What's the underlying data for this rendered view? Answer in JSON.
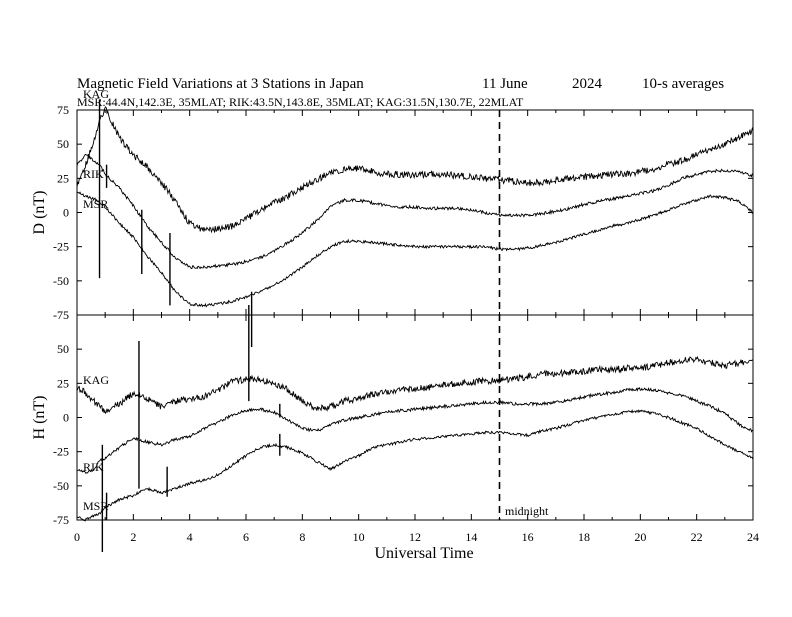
{
  "header": {
    "title": "Magnetic Field Variations at 3 Stations in Japan",
    "date": "11 June",
    "year": "2024",
    "averaging": "10-s averages",
    "stations_line": "MSR:44.4N,142.3E, 35MLAT;  RIK:43.5N,143.8E, 35MLAT;  KAG:31.5N,130.7E, 22MLAT"
  },
  "chart_data": {
    "type": "line",
    "xlabel": "Universal Time",
    "xlim": [
      0,
      24
    ],
    "xticks": [
      "0",
      "2",
      "4",
      "6",
      "8",
      "10",
      "12",
      "14",
      "16",
      "18",
      "20",
      "22",
      "24"
    ],
    "midnight_ut": 15,
    "midnight_label": "midnight",
    "panels": [
      {
        "id": "D",
        "ylabel": "D (nT)",
        "ylim": [
          -75,
          75
        ],
        "yticks": [
          "75",
          "50",
          "25",
          "0",
          "-25",
          "-50",
          "-75"
        ],
        "series": [
          {
            "name": "KAG",
            "x": [
              0,
              0.3,
              0.6,
              0.8,
              1.0,
              1.5,
              2.0,
              2.5,
              3.0,
              3.5,
              4.0,
              4.5,
              5.0,
              5.5,
              6.0,
              6.5,
              7.0,
              7.5,
              8.0,
              8.5,
              9.0,
              9.5,
              10.0,
              10.5,
              11.0,
              11.5,
              12.0,
              12.5,
              13.0,
              13.5,
              14.0,
              14.5,
              15.0,
              15.5,
              16.0,
              16.5,
              17.0,
              17.5,
              18.0,
              18.5,
              19.0,
              19.5,
              20.0,
              20.5,
              21.0,
              21.5,
              22.0,
              22.5,
              23.0,
              23.5,
              24.0
            ],
            "y": [
              20,
              35,
              52,
              68,
              76,
              55,
              42,
              33,
              22,
              8,
              -8,
              -13,
              -12,
              -10,
              -5,
              2,
              7,
              12,
              18,
              24,
              29,
              32,
              32,
              30,
              28,
              28,
              27,
              28,
              28,
              27,
              26,
              25,
              24,
              23,
              22,
              22,
              24,
              25,
              26,
              27,
              28,
              28,
              30,
              32,
              35,
              38,
              42,
              46,
              50,
              55,
              60
            ],
            "spikes": [
              {
                "x": 0.8,
                "y0": 88,
                "y1": -48
              },
              {
                "x": 1.05,
                "y0": 35,
                "y1": 18
              }
            ]
          },
          {
            "name": "RIK",
            "x": [
              0,
              0.3,
              0.6,
              0.8,
              1.0,
              1.5,
              2.0,
              2.5,
              3.0,
              3.5,
              4.0,
              4.5,
              5.0,
              5.5,
              6.0,
              6.5,
              7.0,
              7.5,
              8.0,
              8.5,
              9.0,
              9.5,
              10.0,
              10.5,
              11.0,
              11.5,
              12.0,
              12.5,
              13.0,
              13.5,
              14.0,
              14.5,
              15.0,
              15.5,
              16.0,
              16.5,
              17.0,
              17.5,
              18.0,
              18.5,
              19.0,
              19.5,
              20.0,
              20.5,
              21.0,
              21.5,
              22.0,
              22.5,
              23.0,
              23.5,
              24.0
            ],
            "y": [
              35,
              42,
              38,
              35,
              28,
              18,
              5,
              -10,
              -22,
              -33,
              -40,
              -40,
              -39,
              -38,
              -36,
              -33,
              -28,
              -22,
              -15,
              -6,
              4,
              9,
              9,
              7,
              5,
              4,
              4,
              3,
              3,
              3,
              2,
              0,
              -2,
              -2,
              -2,
              -1,
              1,
              3,
              6,
              8,
              10,
              12,
              14,
              16,
              20,
              25,
              28,
              30,
              31,
              30,
              27
            ],
            "spikes": [
              {
                "x": 2.3,
                "y0": 2,
                "y1": -45
              },
              {
                "x": 3.3,
                "y0": -15,
                "y1": -68
              },
              {
                "x": 6.2,
                "y0": -58,
                "y1": -100
              }
            ]
          },
          {
            "name": "MSR",
            "x": [
              0,
              0.3,
              0.6,
              0.8,
              1.0,
              1.5,
              2.0,
              2.5,
              3.0,
              3.5,
              4.0,
              4.5,
              5.0,
              5.5,
              6.0,
              6.5,
              7.0,
              7.5,
              8.0,
              8.5,
              9.0,
              9.5,
              10.0,
              10.5,
              11.0,
              11.5,
              12.0,
              12.5,
              13.0,
              13.5,
              14.0,
              14.5,
              15.0,
              15.5,
              16.0,
              16.5,
              17.0,
              17.5,
              18.0,
              18.5,
              19.0,
              19.5,
              20.0,
              20.5,
              21.0,
              21.5,
              22.0,
              22.5,
              23.0,
              23.5,
              24.0
            ],
            "y": [
              15,
              12,
              10,
              8,
              4,
              -8,
              -18,
              -32,
              -44,
              -58,
              -67,
              -68,
              -67,
              -65,
              -62,
              -58,
              -53,
              -47,
              -40,
              -32,
              -25,
              -21,
              -21,
              -22,
              -23,
              -24,
              -25,
              -25,
              -25,
              -25,
              -25,
              -25,
              -27,
              -27,
              -26,
              -24,
              -22,
              -19,
              -16,
              -13,
              -10,
              -8,
              -5,
              -2,
              2,
              6,
              9,
              12,
              11,
              8,
              0
            ]
          }
        ]
      },
      {
        "id": "H",
        "ylabel": "H (nT)",
        "ylim": [
          -75,
          75
        ],
        "yticks": [
          "",
          "50",
          "25",
          "0",
          "-25",
          "-50",
          "-75"
        ],
        "series": [
          {
            "name": "KAG",
            "x": [
              0,
              0.3,
              0.6,
              0.8,
              1.0,
              1.5,
              2.0,
              2.5,
              3.0,
              3.5,
              4.0,
              4.5,
              5.0,
              5.5,
              6.0,
              6.5,
              7.0,
              7.5,
              8.0,
              8.5,
              9.0,
              9.5,
              10.0,
              10.5,
              11.0,
              11.5,
              12.0,
              12.5,
              13.0,
              13.5,
              14.0,
              14.5,
              15.0,
              15.5,
              16.0,
              16.5,
              17.0,
              17.5,
              18.0,
              18.5,
              19.0,
              19.5,
              20.0,
              20.5,
              21.0,
              21.5,
              22.0,
              22.5,
              23.0,
              23.5,
              24.0
            ],
            "y": [
              22,
              18,
              12,
              8,
              5,
              10,
              18,
              14,
              8,
              12,
              14,
              15,
              20,
              26,
              28,
              28,
              25,
              20,
              12,
              6,
              8,
              12,
              14,
              17,
              19,
              20,
              21,
              22,
              24,
              25,
              26,
              27,
              27,
              28,
              30,
              32,
              32,
              33,
              34,
              35,
              35,
              36,
              36,
              38,
              40,
              42,
              42,
              40,
              38,
              40,
              42
            ],
            "spikes": [
              {
                "x": 2.2,
                "y0": 56,
                "y1": -52
              },
              {
                "x": 6.1,
                "y0": 85,
                "y1": 12
              }
            ]
          },
          {
            "name": "RIK",
            "x": [
              0,
              0.3,
              0.6,
              0.8,
              1.0,
              1.5,
              2.0,
              2.5,
              3.0,
              3.5,
              4.0,
              4.5,
              5.0,
              5.5,
              6.0,
              6.5,
              7.0,
              7.5,
              8.0,
              8.5,
              9.0,
              9.5,
              10.0,
              10.5,
              11.0,
              11.5,
              12.0,
              12.5,
              13.0,
              13.5,
              14.0,
              14.5,
              15.0,
              15.5,
              16.0,
              16.5,
              17.0,
              17.5,
              18.0,
              18.5,
              19.0,
              19.5,
              20.0,
              20.5,
              21.0,
              21.5,
              22.0,
              22.5,
              23.0,
              23.5,
              24.0
            ],
            "y": [
              -38,
              -40,
              -38,
              -32,
              -30,
              -22,
              -15,
              -18,
              -20,
              -16,
              -14,
              -8,
              -4,
              2,
              5,
              6,
              4,
              -2,
              -8,
              -10,
              -5,
              -2,
              0,
              2,
              4,
              5,
              6,
              7,
              8,
              9,
              10,
              11,
              11,
              10,
              10,
              10,
              11,
              13,
              15,
              17,
              18,
              20,
              21,
              20,
              18,
              16,
              12,
              8,
              3,
              -5,
              -10
            ],
            "spikes": [
              {
                "x": 3.2,
                "y0": -36,
                "y1": -58
              },
              {
                "x": 7.2,
                "y0": 10,
                "y1": 0
              }
            ]
          },
          {
            "name": "MSR",
            "x": [
              0,
              0.3,
              0.6,
              0.8,
              1.0,
              1.5,
              2.0,
              2.5,
              3.0,
              3.5,
              4.0,
              4.5,
              5.0,
              5.5,
              6.0,
              6.5,
              7.0,
              7.5,
              8.0,
              8.5,
              9.0,
              9.5,
              10.0,
              10.5,
              11.0,
              11.5,
              12.0,
              12.5,
              13.0,
              13.5,
              14.0,
              14.5,
              15.0,
              15.5,
              16.0,
              16.5,
              17.0,
              17.5,
              18.0,
              18.5,
              19.0,
              19.5,
              20.0,
              20.5,
              21.0,
              21.5,
              22.0,
              22.5,
              23.0,
              23.5,
              24.0
            ],
            "y": [
              -72,
              -75,
              -72,
              -70,
              -66,
              -60,
              -57,
              -52,
              -55,
              -52,
              -48,
              -46,
              -42,
              -35,
              -28,
              -22,
              -20,
              -22,
              -26,
              -32,
              -38,
              -32,
              -28,
              -22,
              -20,
              -18,
              -16,
              -15,
              -14,
              -13,
              -12,
              -11,
              -11,
              -12,
              -13,
              -10,
              -8,
              -5,
              -2,
              0,
              2,
              4,
              5,
              3,
              0,
              -4,
              -8,
              -14,
              -20,
              -25,
              -30
            ],
            "spikes": [
              {
                "x": 0.9,
                "y0": -20,
                "y1": -100
              },
              {
                "x": 1.05,
                "y0": -55,
                "y1": -75
              },
              {
                "x": 7.2,
                "y0": -12,
                "y1": -28
              }
            ]
          }
        ]
      }
    ]
  }
}
